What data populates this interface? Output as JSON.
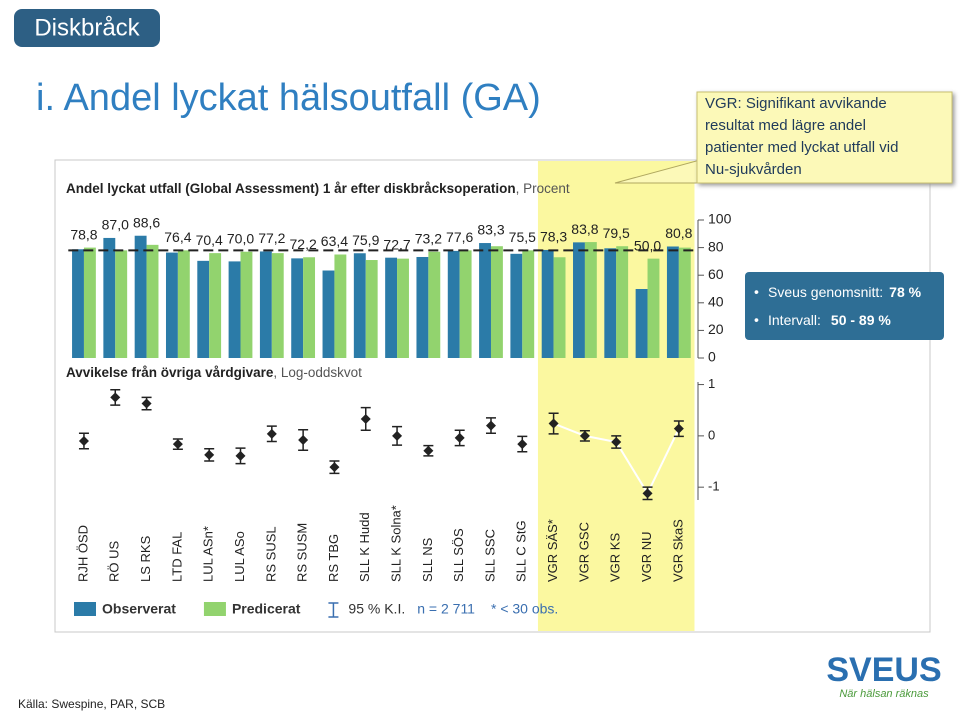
{
  "slide": {
    "tab": "Diskbråck",
    "title": "i. Andel lyckat hälsoutfall (GA)",
    "note": [
      "VGR: Signifikant avvikande",
      "resultat med lägre andel",
      "patienter med lyckat utfall vid",
      "Nu-sjukvården"
    ],
    "summary": [
      {
        "label": "Sveus genomsnitt:",
        "value": "78 %"
      },
      {
        "label": "Intervall:",
        "value": "50 - 89 %"
      }
    ],
    "source": "Källa: Swespine, PAR, SCB",
    "logo": "SVEUS",
    "tagline": "När hälsan räknas"
  },
  "chart_data": [
    {
      "type": "bar",
      "title": "Andel lyckat utfall (Global Assessment) 1 år efter diskbråcksoperation",
      "title_suffix": ", Procent",
      "categories": [
        "RJH ÖSD",
        "RÖ US",
        "LS RKS",
        "LTD FAL",
        "LUL ASn*",
        "LUL ASo",
        "RS SUSL",
        "RS SUSM",
        "RS TBG",
        "SLL K Hudd",
        "SLL K Solna*",
        "SLL NS",
        "SLL SÖS",
        "SLL SSC",
        "SLL C StG",
        "VGR SÄS*",
        "VGR GSC",
        "VGR KS",
        "VGR NU",
        "VGR SkaS"
      ],
      "series": [
        {
          "name": "Observerat",
          "color": "#2b7ba8",
          "values": [
            78.8,
            87.0,
            88.6,
            76.4,
            70.4,
            70.0,
            77.2,
            72.2,
            63.4,
            75.9,
            72.7,
            73.2,
            77.6,
            83.3,
            75.5,
            78.3,
            83.8,
            79.5,
            50.0,
            80.8
          ],
          "value_labels": [
            "78,8",
            "87,0",
            "88,6",
            "76,4",
            "70,4",
            "70,0",
            "77,2",
            "72,2",
            "63,4",
            "75,9",
            "72,7",
            "73,2",
            "77,6",
            "83,3",
            "75,5",
            "78,3",
            "83,8",
            "79,5",
            "50,0",
            "80,8"
          ]
        },
        {
          "name": "Predicerat",
          "color": "#92d36e",
          "values": [
            80,
            78,
            82,
            78,
            76,
            77,
            76,
            73,
            75,
            71,
            72,
            77,
            78,
            81,
            78,
            73,
            84,
            81,
            72,
            80
          ]
        }
      ],
      "ylim": [
        0,
        100
      ],
      "yticks": [
        0,
        20,
        40,
        60,
        80,
        100
      ],
      "reference_line": 78,
      "highlight_categories": [
        "VGR SÄS*",
        "VGR GSC",
        "VGR KS",
        "VGR NU",
        "VGR SkaS"
      ],
      "highlight_color": "#fbf8a0",
      "ci_label": "95 % K.I.",
      "n_label": "n = 2 711",
      "footnote": "* < 30 obs."
    },
    {
      "type": "errorbar",
      "title": "Avvikelse från övriga vårdgivare",
      "title_suffix": ", Log-oddskvot",
      "values": [
        -0.1,
        0.75,
        0.63,
        -0.16,
        -0.37,
        -0.39,
        0.04,
        -0.08,
        -0.61,
        0.33,
        0.0,
        -0.29,
        -0.04,
        0.2,
        -0.16,
        0.24,
        0.0,
        -0.12,
        -1.12,
        0.14
      ],
      "errors": [
        0.15,
        0.15,
        0.12,
        0.1,
        0.12,
        0.15,
        0.15,
        0.2,
        0.12,
        0.22,
        0.18,
        0.1,
        0.15,
        0.15,
        0.15,
        0.2,
        0.1,
        0.12,
        0.12,
        0.15
      ],
      "color": "#222222",
      "line_color": "#ffffff",
      "ylim": [
        -1.25,
        1.05
      ],
      "yticks": [
        1,
        0,
        -1
      ]
    }
  ]
}
